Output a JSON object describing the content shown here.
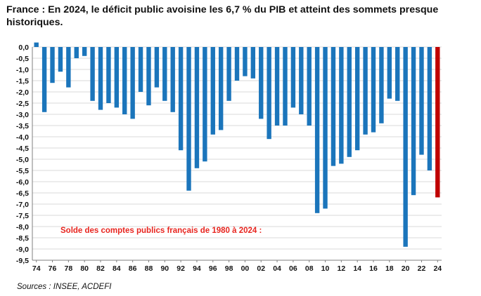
{
  "header": {
    "title": "France : En 2024, le déficit public avoisine les 6,7 % du PIB et atteint des sommets presque historiques."
  },
  "footer": {
    "source": "Sources : INSEE, ACDEFI"
  },
  "colors": {
    "bar": "#1b75bb",
    "highlight_bar": "#c00000",
    "annotation": "#e8251f",
    "grid": "#d9d9d9",
    "axis": "#7f7f7f",
    "text": "#111111"
  },
  "chart_data": {
    "type": "bar",
    "title": "France : En 2024, le déficit public avoisine les 6,7 % du PIB et atteint des sommets presque historiques.",
    "annotation": "Solde des comptes publics français de 1980 à 2024 :",
    "xlabel": "",
    "ylabel": "",
    "ylim": [
      -9.5,
      0
    ],
    "ytick_step": 0.5,
    "yticks": [
      "0,0",
      "-0,5",
      "-1,0",
      "-1,5",
      "-2,0",
      "-2,5",
      "-3,0",
      "-3,5",
      "-4,0",
      "-4,5",
      "-5,0",
      "-5,5",
      "-6,0",
      "-6,5",
      "-7,0",
      "-7,5",
      "-8,0",
      "-8,5",
      "-9,0",
      "-9,5"
    ],
    "xticks": [
      "74",
      "76",
      "78",
      "80",
      "82",
      "84",
      "86",
      "88",
      "90",
      "92",
      "94",
      "96",
      "98",
      "00",
      "02",
      "04",
      "06",
      "08",
      "10",
      "12",
      "14",
      "16",
      "18",
      "20",
      "22",
      "24"
    ],
    "categories": [
      1974,
      1975,
      1976,
      1977,
      1978,
      1979,
      1980,
      1981,
      1982,
      1983,
      1984,
      1985,
      1986,
      1987,
      1988,
      1989,
      1990,
      1991,
      1992,
      1993,
      1994,
      1995,
      1996,
      1997,
      1998,
      1999,
      2000,
      2001,
      2002,
      2003,
      2004,
      2005,
      2006,
      2007,
      2008,
      2009,
      2010,
      2011,
      2012,
      2013,
      2014,
      2015,
      2016,
      2017,
      2018,
      2019,
      2020,
      2021,
      2022,
      2023,
      2024
    ],
    "values": [
      0.2,
      -2.9,
      -1.6,
      -1.1,
      -1.8,
      -0.5,
      -0.4,
      -2.4,
      -2.8,
      -2.5,
      -2.7,
      -3.0,
      -3.2,
      -2.0,
      -2.6,
      -1.8,
      -2.4,
      -2.9,
      -4.6,
      -6.4,
      -5.4,
      -5.1,
      -3.9,
      -3.7,
      -2.4,
      -1.5,
      -1.3,
      -1.4,
      -3.2,
      -4.1,
      -3.5,
      -3.5,
      -2.7,
      -3.0,
      -3.5,
      -7.4,
      -7.2,
      -5.3,
      -5.2,
      -4.9,
      -4.6,
      -3.9,
      -3.8,
      -3.4,
      -2.3,
      -2.4,
      -8.9,
      -6.6,
      -4.8,
      -5.5,
      -6.7
    ],
    "highlight_category": 2024,
    "grid": true,
    "legend": "none"
  }
}
